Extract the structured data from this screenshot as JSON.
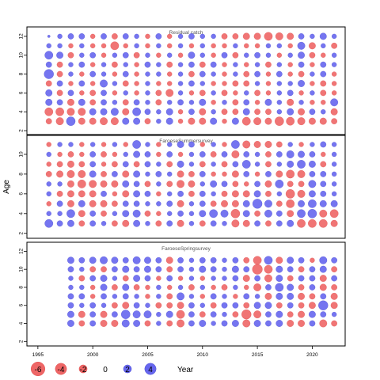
{
  "chart_data": {
    "type": "scatter",
    "description_kind": "bubble",
    "ylabel": "Age",
    "xlabel": "Year",
    "xlim": [
      1994,
      2023
    ],
    "xticks": [
      1995,
      2000,
      2005,
      2010,
      2015,
      2020
    ],
    "colors": {
      "positive": "#6666ee",
      "negative": "#ee6666"
    },
    "panels": [
      {
        "title": "Residual catch",
        "ylim": [
          1.5,
          13
        ],
        "yticks": [
          2,
          4,
          6,
          8,
          10,
          12
        ],
        "years": [
          1996,
          1997,
          1998,
          1999,
          2000,
          2001,
          2002,
          2003,
          2004,
          2005,
          2006,
          2007,
          2008,
          2009,
          2010,
          2011,
          2012,
          2013,
          2014,
          2015,
          2016,
          2017,
          2018,
          2019,
          2020,
          2021,
          2022
        ],
        "ages": [
          3,
          4,
          5,
          6,
          7,
          8,
          9,
          10,
          11,
          12
        ],
        "residuals": [
          [
            -1.5,
            -2.5,
            3.5,
            -2,
            -2,
            -2.5,
            -2.5,
            2,
            2,
            -1.5,
            1,
            2,
            -1,
            -2,
            -2,
            2,
            -1,
            2,
            -3,
            -2.5,
            -2,
            -3.5,
            -3,
            -2.5,
            -2,
            -2,
            -1.5
          ],
          [
            -3,
            -3,
            -2.5,
            -2.5,
            2,
            2,
            2.5,
            -2,
            3,
            1.5,
            1,
            2,
            -1,
            1.5,
            -2,
            1,
            -1.5,
            -1.5,
            2,
            -1.5,
            -1.5,
            1,
            2,
            -2,
            1.5,
            1,
            -2
          ],
          [
            2,
            1.5,
            -2,
            2,
            -1.5,
            1.5,
            1,
            -1.5,
            1.5,
            1,
            -1.5,
            1,
            1.5,
            1,
            2,
            -1,
            1,
            -1.5,
            1.5,
            -1,
            2,
            1,
            -2,
            1,
            -1,
            -1,
            2.5
          ],
          [
            2,
            -1.5,
            1.5,
            -1,
            -1.5,
            1.5,
            -1,
            1,
            -1,
            1,
            -1.5,
            -2.5,
            1,
            -1,
            -1.5,
            1,
            -1.5,
            -1,
            1,
            -1.5,
            -1,
            1,
            1.5,
            -1,
            1,
            -1.5,
            -1
          ],
          [
            -1.5,
            1.5,
            -1,
            1.5,
            -1,
            2.5,
            1,
            -1.5,
            -1,
            1,
            -1,
            -1,
            1,
            1.5,
            1,
            -1,
            -1,
            -1.5,
            -1.5,
            1,
            -1,
            1,
            1,
            2,
            -1,
            -1.5,
            -1
          ],
          [
            4,
            -1.5,
            1,
            -1,
            1.5,
            1,
            -1,
            1.5,
            -1,
            1,
            1,
            -1,
            1,
            -1.5,
            1.5,
            1,
            -1,
            1,
            -1.5,
            1.5,
            -1,
            1.5,
            -1,
            -1.5,
            1,
            1.5,
            -1
          ],
          [
            1.5,
            -1.5,
            1,
            1.5,
            -1,
            1,
            -1.5,
            1,
            -1,
            1.5,
            1,
            -1.5,
            1,
            1.5,
            -1.5,
            1.5,
            -1,
            1,
            -1,
            1,
            -1.5,
            1,
            -1,
            1.5,
            -1,
            1.5,
            1
          ],
          [
            3,
            2,
            -1.5,
            1,
            1.5,
            -1,
            1,
            1.5,
            -1.5,
            1,
            -1,
            1,
            -1,
            2,
            1,
            -1,
            1.5,
            -1.5,
            1,
            1.5,
            1,
            -1,
            1,
            2,
            -1.5,
            -1,
            1
          ],
          [
            1,
            1,
            -1,
            1,
            -1,
            -1,
            -3,
            -1,
            1,
            -1,
            1,
            -1,
            1,
            -1,
            1,
            -1,
            -1,
            1,
            -1,
            -1,
            1,
            1,
            -1,
            2.5,
            -2,
            1,
            -1.5
          ],
          [
            0.3,
            1,
            1.5,
            1.5,
            -1,
            1.5,
            -1.5,
            1.5,
            1,
            -1,
            1.5,
            -1,
            1,
            1.5,
            1,
            1,
            -1.5,
            -1.5,
            -2,
            -2,
            -3,
            -2.5,
            -2,
            1.5,
            1,
            2,
            1
          ]
        ]
      },
      {
        "title": "FaroeseSummersurvey",
        "ylim": [
          1.5,
          12
        ],
        "yticks": [
          2,
          4,
          6,
          8,
          10
        ],
        "years": [
          1996,
          1997,
          1998,
          1999,
          2000,
          2001,
          2002,
          2003,
          2004,
          2005,
          2006,
          2007,
          2008,
          2009,
          2010,
          2011,
          2012,
          2013,
          2014,
          2015,
          2016,
          2017,
          2018,
          2019,
          2020,
          2021,
          2022
        ],
        "ages": [
          3,
          4,
          5,
          6,
          7,
          8,
          9,
          10,
          11
        ],
        "residuals": [
          [
            3,
            1.5,
            2,
            -1.5,
            1.5,
            1,
            -1.5,
            -2,
            2,
            1,
            -1.5,
            1.5,
            -2,
            1,
            -1.5,
            1.5,
            1,
            -2.5,
            -2,
            1.5,
            -1.5,
            1.5,
            2,
            -3,
            -3,
            -3,
            -2
          ],
          [
            1,
            1,
            3,
            -2,
            1.5,
            -1.5,
            1,
            2,
            2.5,
            -1.5,
            -1,
            1,
            1.5,
            1,
            2,
            3,
            2.5,
            -3.5,
            2,
            -1.5,
            2.5,
            1.5,
            -2,
            3,
            3.5,
            -2.5,
            -3
          ],
          [
            -1,
            1.5,
            -2,
            2,
            -2,
            -2,
            -1.5,
            1.5,
            1.5,
            1,
            1,
            1.5,
            -2,
            1,
            1.5,
            -1.5,
            -2,
            -2,
            2,
            4,
            2.5,
            -1.5,
            -3,
            2,
            3,
            2,
            2
          ],
          [
            1,
            -1.5,
            -2,
            -2,
            -2,
            1.5,
            -1,
            -2,
            2,
            1.5,
            -1,
            1,
            1.5,
            -1.5,
            1.5,
            1,
            -1.5,
            -2,
            -2,
            2,
            -1.5,
            1,
            -3.5,
            -2.5,
            2,
            1.5,
            1
          ],
          [
            1,
            1,
            -2,
            -3,
            -2.5,
            -2,
            -2,
            2,
            1.5,
            -1.5,
            1,
            -1.5,
            -2.5,
            -2,
            1,
            2,
            1.5,
            -1.5,
            -1,
            1.5,
            -2,
            3,
            -1.5,
            -1.5,
            2.5,
            1.5,
            1
          ],
          [
            -1.5,
            -2,
            -2.5,
            -2.5,
            2,
            -1.5,
            1.5,
            -2,
            2,
            1,
            1.5,
            1,
            -2,
            -1.5,
            1.5,
            -1,
            -1,
            -2,
            1.5,
            -1,
            1.5,
            -2,
            -3,
            -2.5,
            1.5,
            1.5,
            1
          ],
          [
            -1,
            -1.5,
            -2,
            -1.5,
            1.5,
            -1,
            -1.5,
            1.5,
            -1.5,
            1.5,
            1,
            -1.5,
            2,
            1,
            -1.5,
            1,
            -1.5,
            1.5,
            3,
            1,
            -1.5,
            1,
            2,
            3,
            2,
            -1.5,
            1
          ],
          [
            1,
            -1,
            -1.5,
            -1,
            1.5,
            -1.5,
            -1,
            1,
            2,
            1.5,
            -1,
            1.5,
            -1,
            1,
            1.5,
            -1.5,
            1.5,
            -2.5,
            1.5,
            1,
            -1.5,
            1.5,
            2.5,
            2,
            1.5,
            -1,
            1
          ],
          [
            -1,
            1,
            1,
            -1,
            1,
            -1,
            1,
            -1,
            3,
            1,
            -1,
            1,
            2,
            1.5,
            -1,
            1,
            -1,
            3,
            -2.5,
            -2,
            -2,
            -1.5,
            1,
            -1,
            1,
            1.5,
            1
          ]
        ]
      },
      {
        "title": "FaroeseSpringsurvey",
        "ylim": [
          1.5,
          13
        ],
        "yticks": [
          2,
          4,
          6,
          8,
          10,
          12
        ],
        "years": [
          1998,
          1999,
          2000,
          2001,
          2002,
          2003,
          2004,
          2005,
          2006,
          2007,
          2008,
          2009,
          2010,
          2011,
          2012,
          2013,
          2014,
          2015,
          2016,
          2017,
          2018,
          2019,
          2020,
          2021,
          2022
        ],
        "ages": [
          4,
          5,
          6,
          7,
          8,
          9,
          10,
          11
        ],
        "residuals": [
          [
            2,
            -1.5,
            1.5,
            -2,
            -2,
            2.5,
            2,
            -1.5,
            1,
            -1.5,
            -2.5,
            1.5,
            2,
            1,
            1.5,
            2,
            -2.5,
            2,
            1.5,
            2,
            -2,
            -2,
            1.5,
            -2.5,
            -1.5
          ],
          [
            2,
            -2,
            1.5,
            -2,
            1.5,
            3.5,
            2.5,
            2.5,
            1,
            2,
            -3,
            1.5,
            -1.5,
            1.5,
            1,
            -1.5,
            -4,
            -2.5,
            1.5,
            2,
            -1.5,
            -2,
            2,
            1.5,
            1
          ],
          [
            1.5,
            1,
            1.5,
            1,
            -1.5,
            -2,
            1.5,
            1,
            -1.5,
            -1.5,
            -2,
            1.5,
            1,
            -1.5,
            1.5,
            1.5,
            -1.5,
            2,
            2,
            -1.5,
            1.5,
            -1.5,
            -2,
            4,
            -2
          ],
          [
            1.5,
            1.5,
            -1,
            1.5,
            1,
            1.5,
            1,
            -1,
            1,
            -1.5,
            2.5,
            1,
            -1,
            1.5,
            1,
            -1,
            1.5,
            1,
            -2,
            2,
            2,
            -2,
            -1.5,
            1.5,
            -2
          ],
          [
            1,
            1,
            -1,
            2,
            -1.5,
            2,
            -1.5,
            -1,
            1,
            -1,
            1,
            -1.5,
            1,
            -1,
            -1.5,
            1,
            -1,
            -2.5,
            1.5,
            3,
            2,
            -1.5,
            1.5,
            -2,
            -1.5
          ],
          [
            1,
            -1.5,
            1.5,
            2,
            1,
            -1.5,
            2,
            1.5,
            -1,
            1.5,
            -1,
            1,
            -1,
            1,
            1,
            1.5,
            -2,
            1.5,
            -2.5,
            2,
            -1.5,
            1.5,
            1.5,
            -2,
            1.5
          ],
          [
            1.5,
            1,
            -1.5,
            -1.5,
            1.5,
            2,
            1.5,
            2,
            1.5,
            -1.5,
            1.5,
            1,
            2,
            1.5,
            1,
            2,
            1.5,
            -4.5,
            -3,
            2,
            1.5,
            -1.5,
            1.5,
            2,
            -1.5
          ],
          [
            2,
            1.5,
            2,
            2.5,
            2,
            1.5,
            2.5,
            2,
            1.5,
            -2,
            1.5,
            1,
            1.5,
            1.5,
            1,
            1.5,
            -1.5,
            -3,
            3,
            -2,
            2,
            1.5,
            -1,
            2.5,
            1.5
          ]
        ]
      }
    ],
    "legend": {
      "position": "bottom",
      "values": [
        -6,
        -4,
        -2,
        0,
        2,
        4
      ],
      "labels": [
        "-6",
        "-4",
        "-2",
        "0",
        "2",
        "4"
      ],
      "title": "Year"
    }
  }
}
